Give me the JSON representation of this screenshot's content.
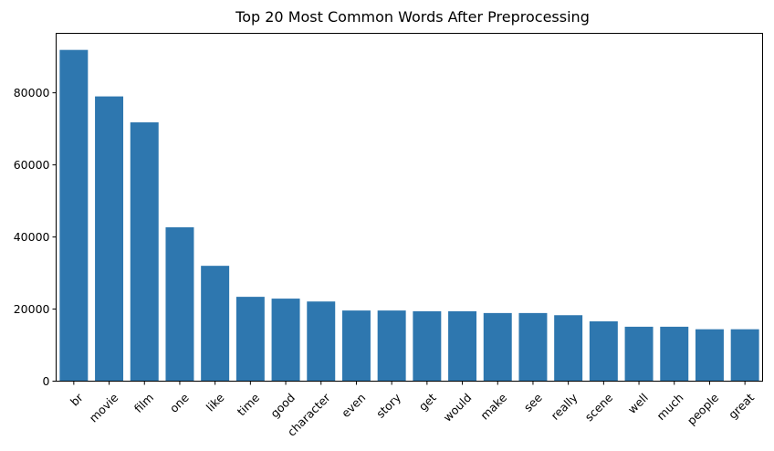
{
  "chart_data": {
    "type": "bar",
    "title": "Top 20 Most Common Words After Preprocessing",
    "xlabel": "",
    "ylabel": "",
    "categories": [
      "br",
      "movie",
      "film",
      "one",
      "like",
      "time",
      "good",
      "character",
      "even",
      "story",
      "get",
      "would",
      "make",
      "see",
      "really",
      "scene",
      "well",
      "much",
      "people",
      "great"
    ],
    "values": [
      91900,
      79000,
      71800,
      42700,
      32000,
      23400,
      22900,
      22100,
      19600,
      19600,
      19400,
      19400,
      18900,
      18900,
      18300,
      16600,
      15100,
      15100,
      14400,
      14400
    ],
    "ylim": [
      0,
      96500
    ],
    "yticks": [
      0,
      20000,
      40000,
      60000,
      80000
    ],
    "ytick_labels": [
      "0",
      "20000",
      "40000",
      "60000",
      "80000"
    ],
    "bar_color": "#2e77af",
    "grid": false,
    "legend": "none"
  }
}
